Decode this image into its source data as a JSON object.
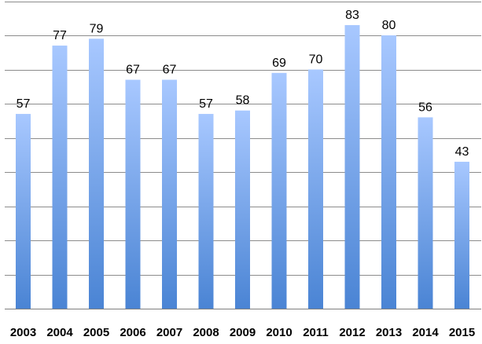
{
  "chart_data": {
    "type": "bar",
    "title": "",
    "xlabel": "",
    "ylabel": "",
    "categories": [
      "2003",
      "2004",
      "2005",
      "2006",
      "2007",
      "2008",
      "2009",
      "2010",
      "2011",
      "2012",
      "2013",
      "2014",
      "2015"
    ],
    "values": [
      57,
      77,
      79,
      67,
      67,
      57,
      58,
      69,
      70,
      83,
      80,
      56,
      43
    ],
    "ylim": [
      0,
      90
    ],
    "y_gridline_step": 10,
    "grid": true,
    "legend": "none",
    "data_labels": true,
    "colors": {
      "bar_top": "#a8c8ff",
      "bar_bottom": "#4a84d4",
      "gridline": "#8c8c8c"
    }
  }
}
